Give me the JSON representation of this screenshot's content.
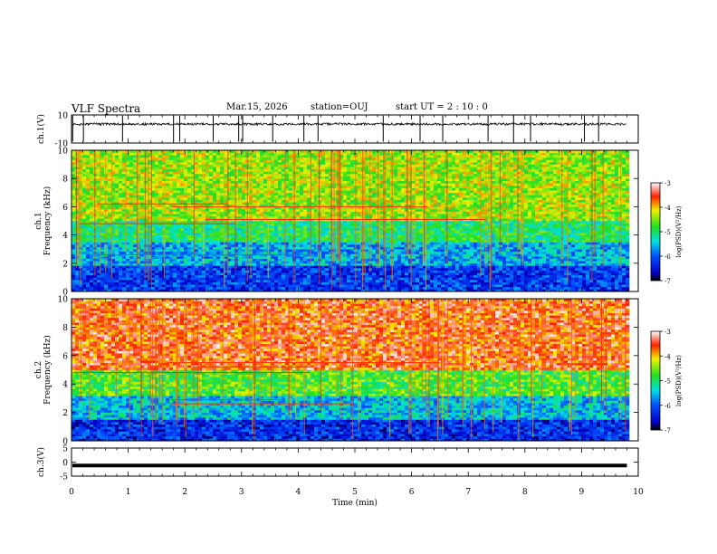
{
  "header": {
    "title": "VLF Spectra",
    "date": "Mar.15, 2026",
    "station": "station=OUJ",
    "start": "start  UT =   2 : 10 : 0"
  },
  "chart_data": [
    {
      "type": "line",
      "name": "ch1-waveform",
      "ylabel": "ch.1(V)",
      "ylim": [
        -10,
        10
      ],
      "yticks": [
        "10",
        "-10"
      ],
      "xlim": [
        0,
        10
      ],
      "x_extent_min": 9.8,
      "baseline_v": 3.5,
      "spike_times_min": [
        0.02,
        0.21,
        0.9,
        1.8,
        1.91,
        2.5,
        2.95,
        3.02,
        3.55,
        4.1,
        4.35,
        5.5,
        6.15,
        6.55,
        7.35,
        7.8,
        8.1,
        9.05,
        9.3
      ]
    },
    {
      "type": "heatmap",
      "name": "ch1-spectrogram",
      "ylabel": "ch.1\nFrequency (kHz)",
      "ylim": [
        0,
        10
      ],
      "yticks": [
        "0",
        "2",
        "4",
        "6",
        "8",
        "10"
      ],
      "xlim": [
        0,
        10
      ],
      "x_extent_min": 9.8,
      "colorbar": {
        "label": "log(PSD)(V²/Hz)",
        "range": [
          -7,
          -3
        ],
        "ticks": [
          "-3",
          "-4",
          "-5",
          "-6",
          "-7"
        ]
      },
      "bands": [
        {
          "f0": 0,
          "f1": 1.8,
          "level": -6.2
        },
        {
          "f0": 1.8,
          "f1": 3.5,
          "level": -5.6
        },
        {
          "f0": 3.5,
          "f1": 5.0,
          "level": -5.0
        },
        {
          "f0": 5.0,
          "f1": 10,
          "level": -4.4
        }
      ],
      "tone_lines_khz": [
        2.6,
        4.8,
        5.1,
        6.0,
        6.2
      ]
    },
    {
      "type": "heatmap",
      "name": "ch2-spectrogram",
      "ylabel": "ch.2\nFrequency (kHz)",
      "ylim": [
        0,
        10
      ],
      "yticks": [
        "0",
        "2",
        "4",
        "6",
        "8",
        "10"
      ],
      "xlim": [
        0,
        10
      ],
      "x_extent_min": 9.8,
      "colorbar": {
        "label": "log(PSD)(V²/Hz)",
        "range": [
          -7,
          -3
        ],
        "ticks": [
          "-3",
          "-4",
          "-5",
          "-6",
          "-7"
        ]
      },
      "bands": [
        {
          "f0": 0,
          "f1": 1.5,
          "level": -6.3
        },
        {
          "f0": 1.5,
          "f1": 3.2,
          "level": -5.5
        },
        {
          "f0": 3.2,
          "f1": 5.0,
          "level": -4.7
        },
        {
          "f0": 5.0,
          "f1": 10,
          "level": -3.6
        }
      ],
      "tone_lines_khz": [
        2.6,
        2.9,
        4.8,
        5.2,
        5.5
      ]
    },
    {
      "type": "line",
      "name": "ch3-waveform",
      "ylabel": "ch.3(V)",
      "ylim": [
        -5,
        5
      ],
      "yticks": [
        "5",
        "0",
        "-5"
      ],
      "xlim": [
        0,
        10
      ],
      "x_extent_min": 9.8,
      "baseline_v": -1.2,
      "xlabel": "Time (min)",
      "xticks": [
        "0",
        "1",
        "2",
        "3",
        "4",
        "5",
        "6",
        "7",
        "8",
        "9",
        "10"
      ]
    }
  ]
}
